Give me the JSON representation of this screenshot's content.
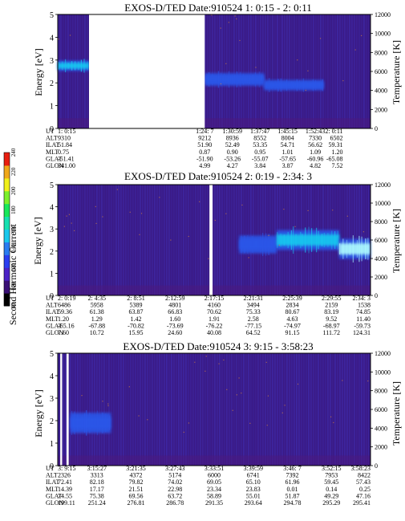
{
  "colors": {
    "background_low": "#3a1a86",
    "background_mid": "#3f2aa8",
    "medium_intensity": "#2c56e8",
    "high_intensity": "#17c9ef",
    "peak_intensity": "#aefcff",
    "data_gap": "#ffffff"
  },
  "colorbar": {
    "label": "Second Harmonic Current",
    "tick_labels": [
      "80",
      "100",
      "120",
      "140",
      "160",
      "180",
      "200",
      "220",
      "240"
    ]
  },
  "orbit_row_labels": [
    "UT",
    "ALT",
    "ILAT",
    "MLT",
    "GLAT",
    "GLON"
  ],
  "chart_data": [
    {
      "type": "heatmap",
      "title": "EXOS-D/TED   Date:910524   1: 0:15 - 2: 0:11",
      "ylabel": "Energy [eV]",
      "y2label": "Temperature [K]",
      "ylim": [
        0,
        5
      ],
      "y2lim": [
        0,
        12000
      ],
      "yticks": [
        "0",
        "1",
        "2",
        "3",
        "4",
        "5"
      ],
      "y2ticks": [
        "0",
        "2000",
        "4000",
        "6000",
        "8000",
        "10000",
        "12000"
      ],
      "first_row_label": "UT",
      "orbit": {
        "UT": [
          "1: 0:15",
          "1:24: 7",
          "1:30:59",
          "1:37:47",
          "1:45:15",
          "1:52:43",
          "2: 0:11"
        ],
        "ALT": [
          "9310",
          "9212",
          "8936",
          "8552",
          "8004",
          "7330",
          "6502"
        ],
        "ILAT": [
          "51.84",
          "51.90",
          "52.49",
          "53.35",
          "54.71",
          "56.62",
          "59.31"
        ],
        "MLT": [
          "0.75",
          "0.87",
          "0.90",
          "0.95",
          "1.01",
          "1.09",
          "1.20"
        ],
        "GLAT": [
          "-51.41",
          "-51.90",
          "-53.26",
          "-55.07",
          "-57.65",
          "-60.96",
          "-65.08"
        ],
        "GLON": [
          "341.00",
          "4.99",
          "4.27",
          "3.84",
          "3.87",
          "4.82",
          "7.52"
        ]
      },
      "data_gaps": [
        [
          0.1,
          0.47
        ]
      ],
      "bands": [
        {
          "from": 0.0,
          "to": 0.1,
          "center": 2.75,
          "width": 0.45,
          "intensity": "high_intensity"
        },
        {
          "from": 0.47,
          "to": 0.66,
          "center": 2.15,
          "width": 0.55,
          "intensity": "medium_intensity"
        },
        {
          "from": 0.66,
          "to": 0.85,
          "center": 1.9,
          "width": 0.45,
          "intensity": "medium_intensity"
        }
      ]
    },
    {
      "type": "heatmap",
      "title": "EXOS-D/TED   Date:910524   2: 0:19 - 2:34: 3",
      "ylabel": "Energy [eV]",
      "y2label": "Temperature [K]",
      "ylim": [
        0,
        5
      ],
      "y2lim": [
        0,
        12000
      ],
      "yticks": [
        "0",
        "1",
        "2",
        "3",
        "4",
        "5"
      ],
      "y2ticks": [
        "0",
        "2000",
        "4000",
        "6000",
        "8000",
        "10000",
        "12000"
      ],
      "first_row_label": "UT",
      "orbit": {
        "UT": [
          "2: 0:19",
          "2: 4:35",
          "2: 8:51",
          "2:12:59",
          "2:17:15",
          "2:21:31",
          "2:25:39",
          "2:29:55",
          "2:34: 3"
        ],
        "ALT": [
          "6486",
          "5958",
          "5389",
          "4801",
          "4160",
          "3494",
          "2834",
          "2159",
          "1538"
        ],
        "ILAT": [
          "59.36",
          "61.38",
          "63.87",
          "66.83",
          "70.62",
          "75.33",
          "80.67",
          "83.19",
          "74.85"
        ],
        "MLT": [
          "1.20",
          "1.29",
          "1.42",
          "1.60",
          "1.91",
          "2.58",
          "4.63",
          "9.52",
          "11.40"
        ],
        "GLAT": [
          "-65.16",
          "-67.88",
          "-70.82",
          "-73.69",
          "-76.22",
          "-77.15",
          "-74.97",
          "-68.97",
          "-59.73"
        ],
        "GLON": [
          "7.60",
          "10.72",
          "15.95",
          "24.60",
          "40.08",
          "64.52",
          "91.15",
          "111.72",
          "124.31"
        ]
      },
      "data_gaps": [
        [
          0.485,
          0.495
        ]
      ],
      "bands": [
        {
          "from": 0.58,
          "to": 0.7,
          "center": 2.3,
          "width": 0.8,
          "intensity": "medium_intensity"
        },
        {
          "from": 0.7,
          "to": 0.9,
          "center": 2.5,
          "width": 0.9,
          "intensity": "high_intensity"
        },
        {
          "from": 0.9,
          "to": 1.0,
          "center": 2.1,
          "width": 0.9,
          "intensity": "peak_intensity"
        }
      ]
    },
    {
      "type": "heatmap",
      "title": "EXOS-D/TED   Date:910524   3: 9:15 - 3:58:23",
      "ylabel": "Energy [eV]",
      "y2label": "Temperature [K]",
      "ylim": [
        0,
        5
      ],
      "y2lim": [
        0,
        12000
      ],
      "yticks": [
        "0",
        "1",
        "2",
        "3",
        "4",
        "5"
      ],
      "y2ticks": [
        "0",
        "2000",
        "4000",
        "6000",
        "8000",
        "10000",
        "12000"
      ],
      "first_row_label": "UT",
      "orbit": {
        "UT": [
          "3: 9:15",
          "3:15:27",
          "3:21:35",
          "3:27:43",
          "3:33:51",
          "3:39:59",
          "3:46: 7",
          "3:52:15",
          "3:58:23"
        ],
        "ALT": [
          "2326",
          "3313",
          "4372",
          "5174",
          "6000",
          "6741",
          "7392",
          "7953",
          "8422"
        ],
        "ILAT": [
          "72.41",
          "82.18",
          "79.82",
          "74.02",
          "69.05",
          "65.10",
          "61.96",
          "59.45",
          "57.43"
        ],
        "MLT": [
          "14.39",
          "17.17",
          "21.51",
          "22.98",
          "23.34",
          "23.83",
          "0.01",
          "0.14",
          "0.25"
        ],
        "GLAT": [
          "74.55",
          "75.38",
          "69.56",
          "63.72",
          "58.89",
          "55.01",
          "51.87",
          "49.29",
          "47.16"
        ],
        "GLON": [
          "199.11",
          "251.24",
          "276.81",
          "286.78",
          "291.35",
          "293.64",
          "294.78",
          "295.29",
          "295.41"
        ]
      },
      "data_gaps": [
        [
          0.008,
          0.014
        ],
        [
          0.028,
          0.035
        ]
      ],
      "bands": [
        {
          "from": 0.04,
          "to": 0.17,
          "center": 1.9,
          "width": 0.9,
          "intensity": "medium_intensity"
        }
      ]
    }
  ]
}
